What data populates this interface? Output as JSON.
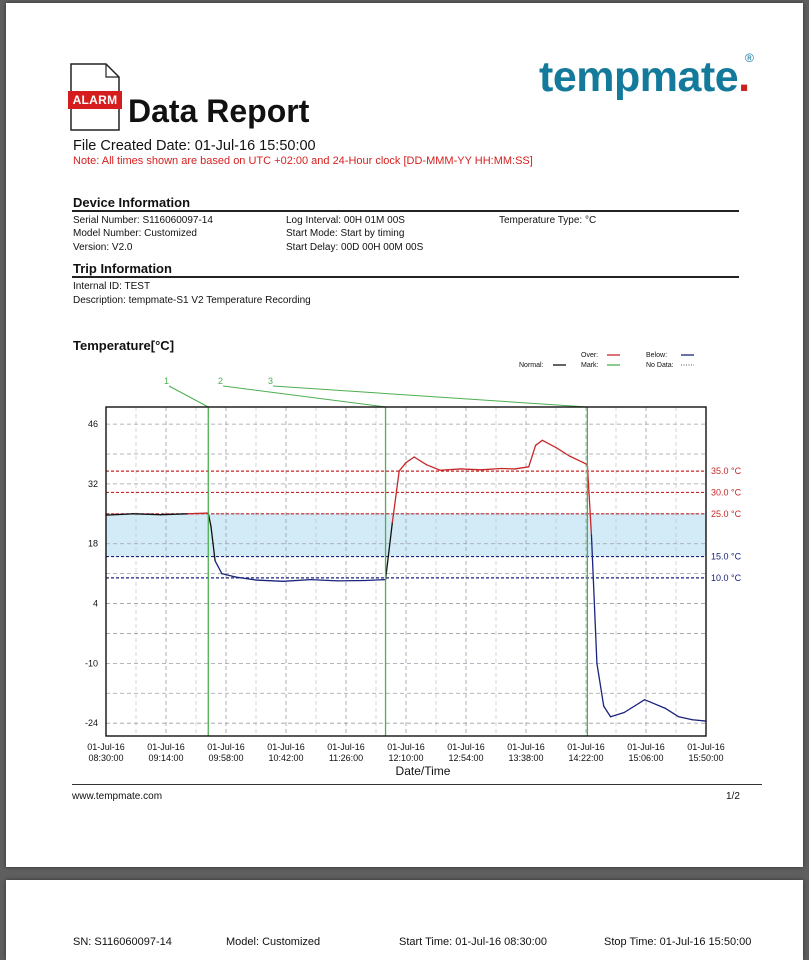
{
  "header": {
    "badge": "ALARM",
    "title": "Data Report",
    "brand_part1": "temp",
    "brand_part2": "mate",
    "brand_dot": ".",
    "brand_reg": "®",
    "file_created": "File Created Date:  01-Jul-16 15:50:00",
    "note": "Note: All times shown are based on UTC +02:00 and 24-Hour clock [DD-MMM-YY HH:MM:SS]"
  },
  "device": {
    "heading": "Device Information",
    "serial": "Serial Number:  S116060097-14",
    "model": "Model Number: Customized",
    "version": "Version: V2.0",
    "log_interval": "Log Interval:  00H 01M 00S",
    "start_mode": "Start Mode:   Start by timing",
    "start_delay": "Start Delay:   00D 00H 00M 00S",
    "temp_type": "Temperature Type: °C"
  },
  "trip": {
    "heading": "Trip Information",
    "internal_id": "Internal ID:   TEST",
    "description": "Description:  tempmate-S1 V2 Temperature Recording"
  },
  "chart_heading": "Temperature[°C]",
  "legend": {
    "over": "Over:",
    "below": "Below:",
    "normal": "Normal:",
    "mark": "Mark:",
    "no_data": "No Data:"
  },
  "colors": {
    "over": "#c62828",
    "below": "#1a237e",
    "normal": "#111111",
    "mark": "#4caf50",
    "band": "#d3eaf7"
  },
  "chart_data": {
    "type": "line",
    "title": "Temperature[°C]",
    "xlabel": "Date/Time",
    "ylabel": "",
    "ylim": [
      -27,
      50
    ],
    "y_ticks": [
      46,
      32,
      18,
      4,
      -10,
      -24
    ],
    "x_ticks": [
      [
        "01-Jul-16",
        "08:30:00"
      ],
      [
        "01-Jul-16",
        "09:14:00"
      ],
      [
        "01-Jul-16",
        "09:58:00"
      ],
      [
        "01-Jul-16",
        "10:42:00"
      ],
      [
        "01-Jul-16",
        "11:26:00"
      ],
      [
        "01-Jul-16",
        "12:10:00"
      ],
      [
        "01-Jul-16",
        "12:54:00"
      ],
      [
        "01-Jul-16",
        "13:38:00"
      ],
      [
        "01-Jul-16",
        "14:22:00"
      ],
      [
        "01-Jul-16",
        "15:06:00"
      ],
      [
        "01-Jul-16",
        "15:50:00"
      ]
    ],
    "xlim_minutes": [
      0,
      440
    ],
    "thresholds": [
      {
        "label": "35.0 °C",
        "value": 35,
        "kind": "over"
      },
      {
        "label": "30.0 °C",
        "value": 30,
        "kind": "over"
      },
      {
        "label": "25.0 °C",
        "value": 25,
        "kind": "over"
      },
      {
        "label": "15.0 °C",
        "value": 15,
        "kind": "below"
      },
      {
        "label": "10.0 °C",
        "value": 10,
        "kind": "below"
      }
    ],
    "marks": [
      {
        "label": "1",
        "minute": 75
      },
      {
        "label": "2",
        "minute": 205
      },
      {
        "label": "3",
        "minute": 353
      }
    ],
    "series": [
      {
        "x_minutes": [
          0,
          20,
          40,
          60,
          75,
          77,
          80,
          85,
          95,
          110,
          130,
          150,
          170,
          190,
          205,
          210,
          215,
          220,
          226,
          235,
          245,
          260,
          275,
          290,
          300,
          310,
          315,
          320,
          330,
          340,
          350,
          353,
          356,
          360,
          365,
          370,
          380,
          395,
          410,
          420,
          430,
          440
        ],
        "y": [
          24.7,
          25,
          24.8,
          25,
          25.2,
          22,
          14,
          11,
          10.2,
          9.5,
          9.2,
          9.6,
          9.3,
          9.4,
          9.6,
          23,
          35,
          37,
          38.3,
          36.5,
          35.2,
          35.5,
          35.3,
          35.6,
          35.5,
          36,
          41,
          42.2,
          40.5,
          38.5,
          37,
          36.5,
          20,
          -10,
          -20,
          -22.5,
          -21.5,
          -18.5,
          -20.5,
          -22.5,
          -23.2,
          -23.5
        ]
      }
    ]
  },
  "footer": {
    "url": "www.tempmate.com",
    "page": "1/2"
  },
  "page2": {
    "sn": "SN:  S116060097-14",
    "model": "Model:  Customized",
    "start": "Start Time:  01-Jul-16 08:30:00",
    "stop": "Stop Time:  01-Jul-16 15:50:00"
  }
}
